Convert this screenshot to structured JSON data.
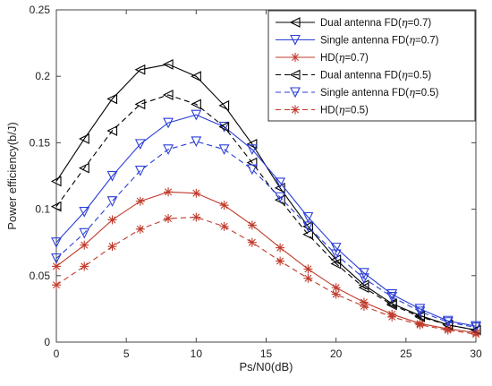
{
  "chart_data": {
    "type": "line",
    "xlabel": "Ps/N0(dB)",
    "ylabel": "Power efficiency(b/J)",
    "xlim": [
      0,
      30
    ],
    "ylim": [
      0,
      0.25
    ],
    "x_ticks": [
      "0",
      "5",
      "10",
      "15",
      "20",
      "25",
      "30"
    ],
    "y_ticks": [
      "0",
      "0.05",
      "0.1",
      "0.15",
      "0.2",
      "0.25"
    ],
    "grid": false,
    "legend_position": "top-right",
    "x": [
      0,
      2,
      4,
      6,
      8,
      10,
      12,
      14,
      16,
      18,
      20,
      22,
      24,
      26,
      28,
      30
    ],
    "series": [
      {
        "name": "Dual antenna FD(η=0.7)",
        "legend_prefix": "Dual antenna FD(",
        "legend_suffix": "=0.7)",
        "color": "#000000",
        "line_style": "solid",
        "marker": "triangle-left",
        "values": [
          0.121,
          0.153,
          0.183,
          0.205,
          0.209,
          0.2,
          0.178,
          0.149,
          0.116,
          0.087,
          0.062,
          0.043,
          0.029,
          0.02,
          0.013,
          0.009
        ]
      },
      {
        "name": "Single antenna FD(η=0.7)",
        "legend_prefix": "Single antenna FD(",
        "legend_suffix": "=0.7)",
        "color": "#2b3fd6",
        "line_style": "solid",
        "marker": "triangle-down",
        "values": [
          0.075,
          0.098,
          0.125,
          0.149,
          0.165,
          0.171,
          0.162,
          0.145,
          0.12,
          0.094,
          0.071,
          0.052,
          0.036,
          0.025,
          0.016,
          0.012
        ]
      },
      {
        "name": "HD(η=0.7)",
        "legend_prefix": "HD(",
        "legend_suffix": "=0.7)",
        "color": "#c03a2b",
        "line_style": "solid",
        "marker": "asterisk",
        "values": [
          0.057,
          0.073,
          0.092,
          0.106,
          0.113,
          0.112,
          0.103,
          0.088,
          0.071,
          0.055,
          0.041,
          0.03,
          0.021,
          0.014,
          0.01,
          0.007
        ]
      },
      {
        "name": "Dual antenna FD(η=0.5)",
        "legend_prefix": "Dual antenna FD(",
        "legend_suffix": "=0.5)",
        "color": "#000000",
        "line_style": "dashed",
        "marker": "triangle-left",
        "values": [
          0.102,
          0.131,
          0.159,
          0.179,
          0.186,
          0.179,
          0.162,
          0.135,
          0.107,
          0.081,
          0.059,
          0.041,
          0.028,
          0.019,
          0.013,
          0.009
        ]
      },
      {
        "name": "Single antenna FD(η=0.5)",
        "legend_prefix": "Single antenna FD(",
        "legend_suffix": "=0.5)",
        "color": "#2b3fd6",
        "line_style": "dashed",
        "marker": "triangle-down",
        "values": [
          0.063,
          0.082,
          0.106,
          0.129,
          0.145,
          0.151,
          0.145,
          0.13,
          0.109,
          0.087,
          0.066,
          0.048,
          0.034,
          0.023,
          0.015,
          0.011
        ]
      },
      {
        "name": "HD(η=0.5)",
        "legend_prefix": "HD(",
        "legend_suffix": "=0.5)",
        "color": "#c03a2b",
        "line_style": "dashed",
        "marker": "asterisk",
        "values": [
          0.043,
          0.057,
          0.072,
          0.085,
          0.093,
          0.094,
          0.087,
          0.075,
          0.061,
          0.048,
          0.036,
          0.027,
          0.019,
          0.013,
          0.009,
          0.006
        ]
      }
    ]
  }
}
